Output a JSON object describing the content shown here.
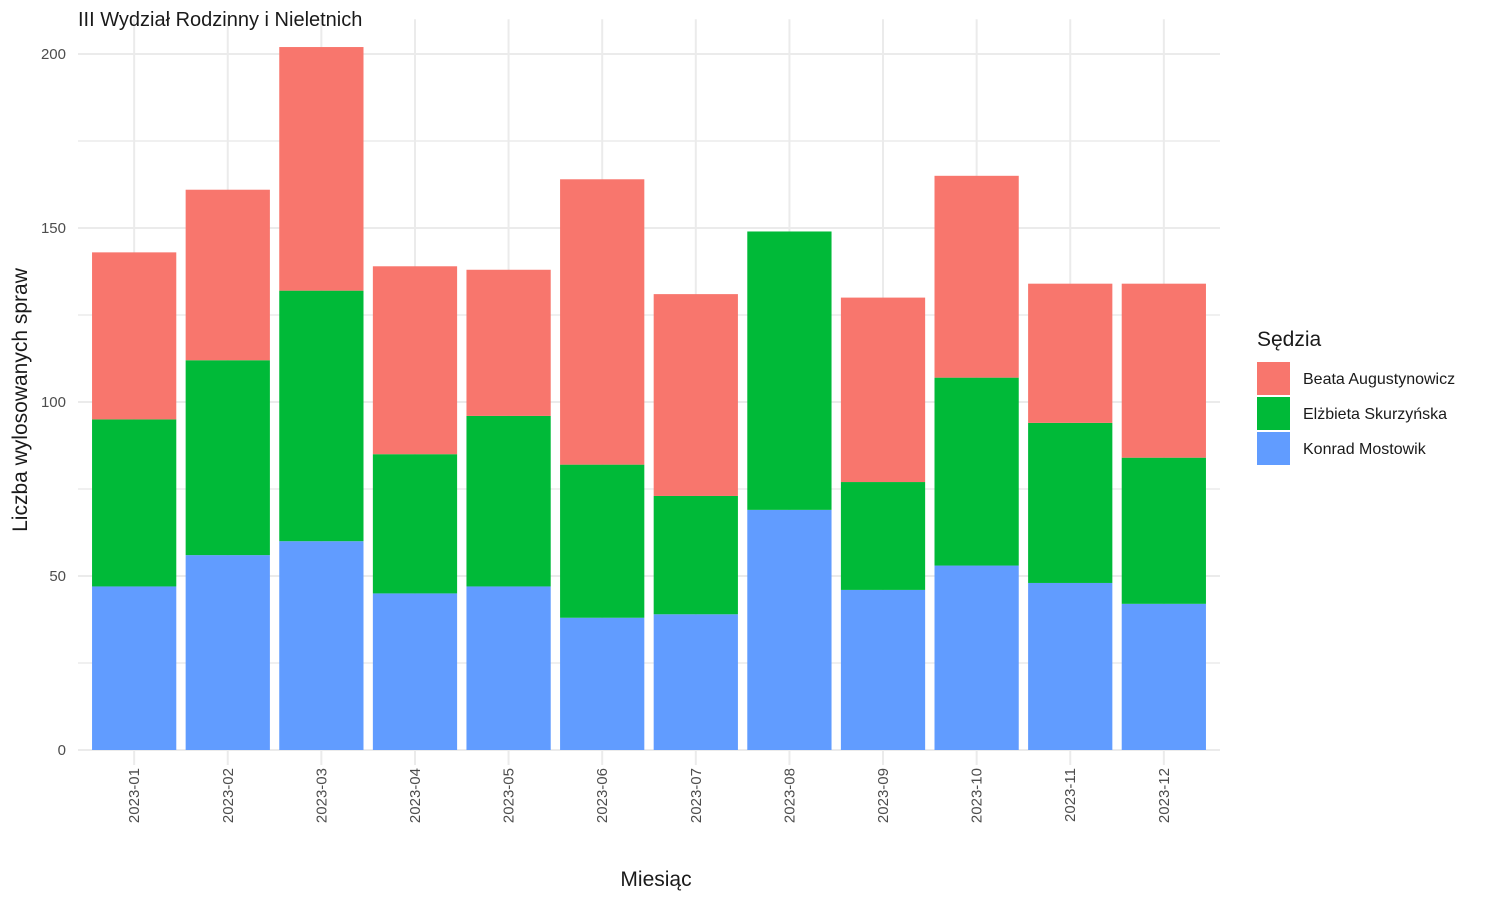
{
  "chart_data": {
    "type": "bar",
    "stacked": true,
    "title": "III Wydział Rodzinny i Nieletnich",
    "xlabel": "Miesiąc",
    "ylabel": "Liczba wylosowanych spraw",
    "ylim": [
      0,
      210
    ],
    "yticks": [
      0,
      50,
      100,
      150,
      200
    ],
    "grid": true,
    "legend_position": "right",
    "legend_title": "Sędzia",
    "categories": [
      "2023-01",
      "2023-02",
      "2023-03",
      "2023-04",
      "2023-05",
      "2023-06",
      "2023-07",
      "2023-08",
      "2023-09",
      "2023-10",
      "2023-11",
      "2023-12"
    ],
    "series": [
      {
        "name": "Konrad Mostowik",
        "color": "#619CFF",
        "values": [
          47,
          56,
          60,
          45,
          47,
          38,
          39,
          69,
          46,
          53,
          48,
          42
        ]
      },
      {
        "name": "Elżbieta Skurzyńska",
        "color": "#00BA38",
        "values": [
          48,
          56,
          72,
          40,
          49,
          44,
          34,
          80,
          31,
          54,
          46,
          42
        ]
      },
      {
        "name": "Beata Augustynowicz",
        "color": "#F8766D",
        "values": [
          48,
          49,
          70,
          54,
          42,
          82,
          58,
          0,
          53,
          58,
          40,
          50
        ]
      }
    ],
    "legend_order": [
      "Beata Augustynowicz",
      "Elżbieta Skurzyńska",
      "Konrad Mostowik"
    ]
  }
}
